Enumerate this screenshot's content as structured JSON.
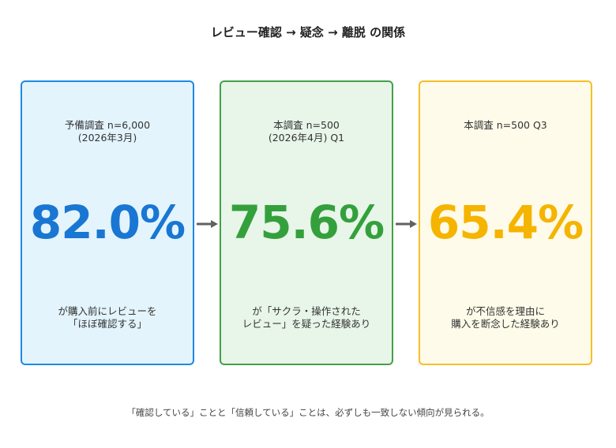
{
  "title": "レビュー確認 → 疑念 → 離脱 の関係",
  "cards": [
    {
      "source": [
        "予備調査 n=6,000",
        "(2026年3月)"
      ],
      "value": "82.0%",
      "caption": [
        "が購入前にレビューを",
        "「ほぼ確認する」"
      ],
      "accent": "#1976d2",
      "border": "#1e88e5",
      "background": "#e3f4fd"
    },
    {
      "source": [
        "本調査 n=500",
        "(2026年4月) Q1"
      ],
      "value": "75.6%",
      "caption": [
        "が「サクラ・操作された",
        "レビュー」を疑った経験あり"
      ],
      "accent": "#34a03c",
      "border": "#43a047",
      "background": "#e8f5e9"
    },
    {
      "source": [
        "本調査 n=500 Q3",
        ""
      ],
      "value": "65.4%",
      "caption": [
        "が不信感を理由に",
        "購入を断念した経験あり"
      ],
      "accent": "#f5b400",
      "border": "#f6bf26",
      "background": "#fffbea"
    }
  ],
  "arrows": {
    "color": "#616161"
  },
  "footnote": "「確認している」ことと「信頼している」ことは、必ずしも一致しない傾向が見られる。"
}
